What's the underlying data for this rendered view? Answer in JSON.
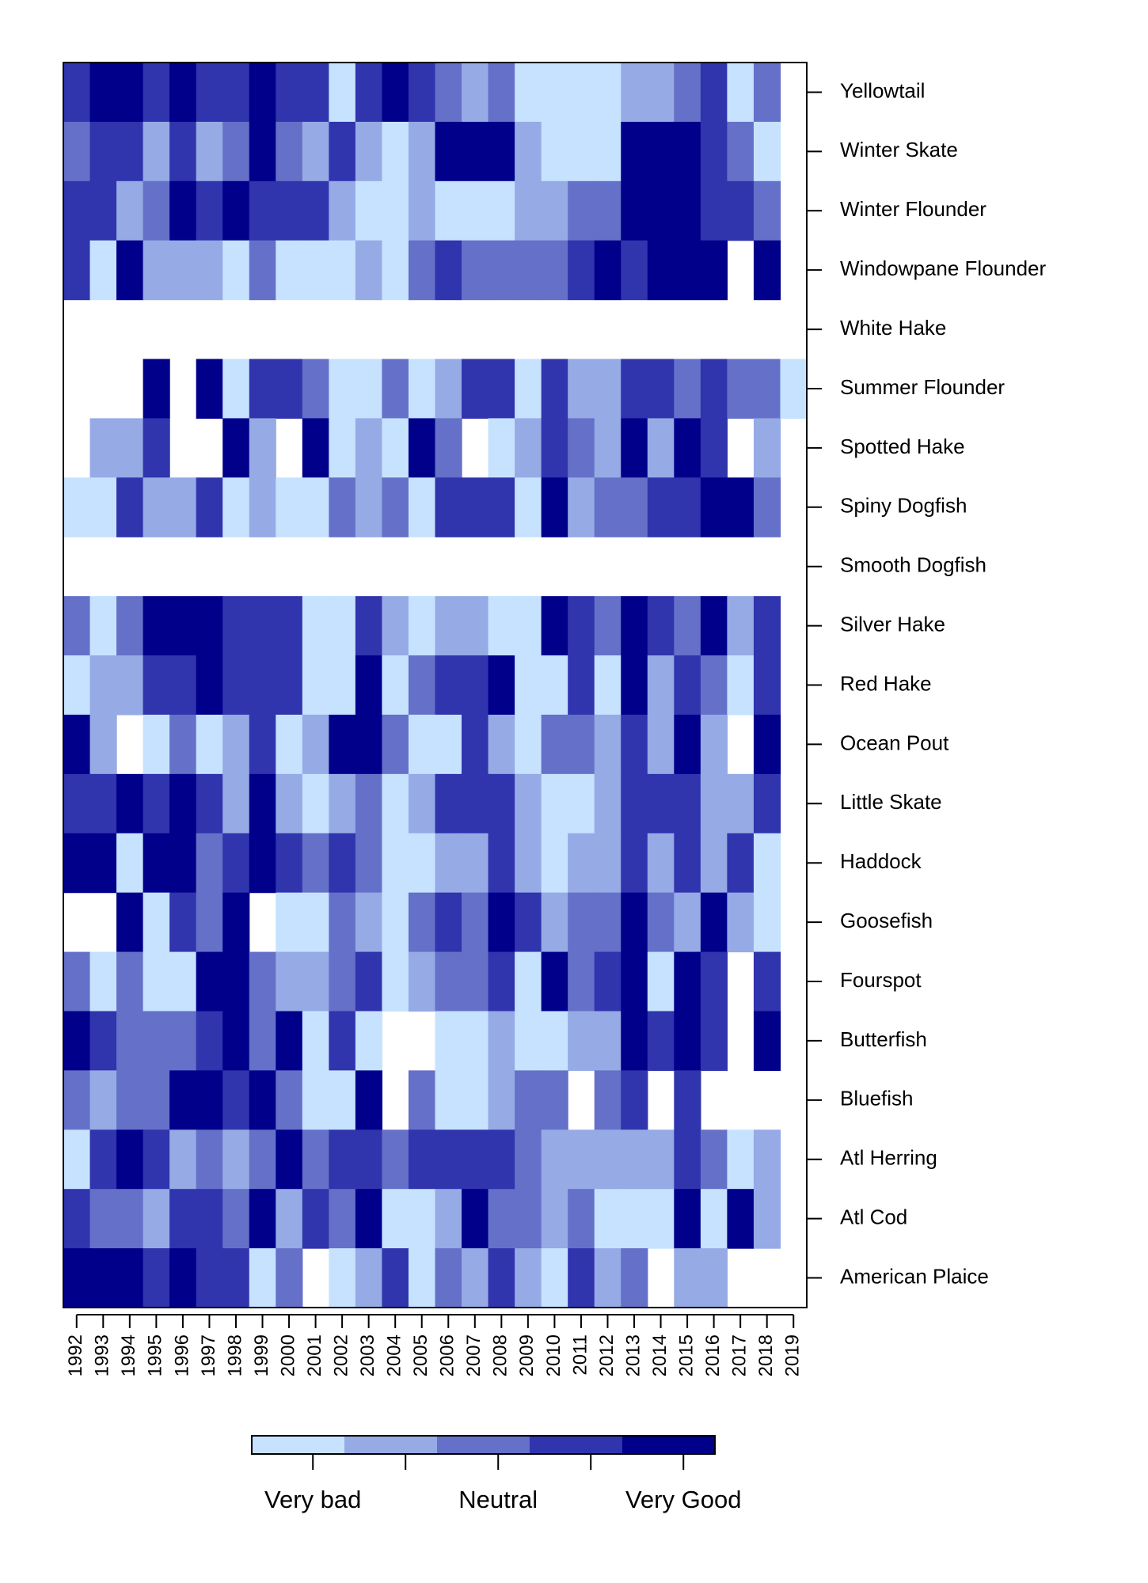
{
  "chart_data": {
    "type": "heatmap",
    "title": "",
    "x": [
      "1992",
      "1993",
      "1994",
      "1995",
      "1996",
      "1997",
      "1998",
      "1999",
      "2000",
      "2001",
      "2002",
      "2003",
      "2004",
      "2005",
      "2006",
      "2007",
      "2008",
      "2009",
      "2010",
      "2011",
      "2012",
      "2013",
      "2014",
      "2015",
      "2016",
      "2017",
      "2018",
      "2019"
    ],
    "y": [
      "Yellowtail",
      "Winter Skate",
      "Winter Flounder",
      "Windowpane Flounder",
      "White Hake",
      "Summer Flounder",
      "Spotted Hake",
      "Spiny Dogfish",
      "Smooth Dogfish",
      "Silver Hake",
      "Red Hake",
      "Ocean Pout",
      "Little Skate",
      "Haddock",
      "Goosefish",
      "Fourspot",
      "Butterfish",
      "Bluefish",
      "Atl Herring",
      "Atl Cod",
      "American Plaice"
    ],
    "scale": {
      "min": 1,
      "max": 5,
      "colors": [
        "#c6e2ff",
        "#96aae5",
        "#6570c8",
        "#3034ad",
        "#00008b"
      ],
      "legend_labels": [
        "Very bad",
        "Neutral",
        "Very Good"
      ],
      "missing": "blank"
    },
    "values": [
      [
        4,
        5,
        5,
        4,
        5,
        4,
        4,
        5,
        4,
        4,
        1,
        4,
        5,
        4,
        3,
        2,
        3,
        1,
        1,
        1,
        1,
        2,
        2,
        3,
        4,
        1,
        3,
        null
      ],
      [
        3,
        4,
        4,
        2,
        4,
        2,
        3,
        5,
        3,
        2,
        4,
        2,
        1,
        2,
        5,
        5,
        5,
        2,
        1,
        1,
        1,
        5,
        5,
        5,
        4,
        3,
        1,
        null
      ],
      [
        4,
        4,
        2,
        3,
        5,
        4,
        5,
        4,
        4,
        4,
        2,
        1,
        1,
        2,
        1,
        1,
        1,
        2,
        2,
        3,
        3,
        5,
        5,
        5,
        4,
        4,
        3,
        null
      ],
      [
        4,
        1,
        5,
        2,
        2,
        2,
        1,
        3,
        1,
        1,
        1,
        2,
        1,
        3,
        4,
        3,
        3,
        3,
        3,
        4,
        5,
        4,
        5,
        5,
        5,
        null,
        5,
        null
      ],
      [
        null,
        null,
        null,
        null,
        null,
        null,
        null,
        null,
        null,
        null,
        null,
        null,
        null,
        null,
        null,
        null,
        null,
        null,
        null,
        null,
        null,
        null,
        null,
        null,
        null,
        null,
        null,
        null
      ],
      [
        null,
        null,
        null,
        5,
        null,
        5,
        1,
        4,
        4,
        3,
        1,
        1,
        3,
        1,
        2,
        4,
        4,
        1,
        4,
        2,
        2,
        4,
        4,
        3,
        4,
        3,
        3,
        1
      ],
      [
        null,
        2,
        2,
        4,
        null,
        null,
        5,
        2,
        null,
        5,
        1,
        2,
        1,
        5,
        3,
        null,
        1,
        2,
        4,
        3,
        2,
        5,
        2,
        5,
        4,
        null,
        2,
        null
      ],
      [
        1,
        1,
        4,
        2,
        2,
        4,
        1,
        2,
        1,
        1,
        3,
        2,
        3,
        1,
        4,
        4,
        4,
        1,
        5,
        2,
        3,
        3,
        4,
        4,
        5,
        5,
        3,
        null
      ],
      [
        null,
        null,
        null,
        null,
        null,
        null,
        null,
        null,
        null,
        null,
        null,
        null,
        null,
        null,
        null,
        null,
        null,
        null,
        null,
        null,
        null,
        null,
        null,
        null,
        null,
        null,
        null,
        null
      ],
      [
        3,
        1,
        3,
        5,
        5,
        5,
        4,
        4,
        4,
        1,
        1,
        4,
        2,
        1,
        2,
        2,
        1,
        1,
        5,
        4,
        3,
        5,
        4,
        3,
        5,
        2,
        4,
        null
      ],
      [
        1,
        2,
        2,
        4,
        4,
        5,
        4,
        4,
        4,
        1,
        1,
        5,
        1,
        3,
        4,
        4,
        5,
        1,
        1,
        4,
        1,
        5,
        2,
        4,
        3,
        1,
        4,
        null
      ],
      [
        5,
        2,
        null,
        1,
        3,
        1,
        2,
        4,
        1,
        2,
        5,
        5,
        3,
        1,
        1,
        4,
        2,
        1,
        3,
        3,
        2,
        4,
        2,
        5,
        2,
        null,
        5,
        null
      ],
      [
        4,
        4,
        5,
        4,
        5,
        4,
        2,
        5,
        2,
        1,
        2,
        3,
        1,
        2,
        4,
        4,
        4,
        2,
        1,
        1,
        2,
        4,
        4,
        4,
        2,
        2,
        4,
        null
      ],
      [
        5,
        5,
        1,
        5,
        5,
        3,
        4,
        5,
        4,
        3,
        4,
        3,
        1,
        1,
        2,
        2,
        4,
        2,
        1,
        2,
        2,
        4,
        2,
        4,
        2,
        4,
        1,
        null
      ],
      [
        null,
        null,
        5,
        1,
        4,
        3,
        5,
        null,
        1,
        1,
        3,
        2,
        1,
        3,
        4,
        3,
        5,
        4,
        2,
        3,
        3,
        5,
        3,
        2,
        5,
        2,
        1,
        null
      ],
      [
        3,
        1,
        3,
        1,
        1,
        5,
        5,
        3,
        2,
        2,
        3,
        4,
        1,
        2,
        3,
        3,
        4,
        1,
        5,
        3,
        4,
        5,
        1,
        5,
        4,
        null,
        4,
        null
      ],
      [
        5,
        4,
        3,
        3,
        3,
        4,
        5,
        3,
        5,
        1,
        4,
        1,
        null,
        null,
        1,
        1,
        2,
        1,
        1,
        2,
        2,
        5,
        4,
        5,
        4,
        null,
        5,
        null
      ],
      [
        3,
        2,
        3,
        3,
        5,
        5,
        4,
        5,
        3,
        1,
        1,
        5,
        null,
        3,
        1,
        1,
        2,
        3,
        3,
        null,
        3,
        4,
        null,
        4,
        null,
        null,
        null,
        null
      ],
      [
        1,
        4,
        5,
        4,
        2,
        3,
        2,
        3,
        5,
        3,
        4,
        4,
        3,
        4,
        4,
        4,
        4,
        3,
        2,
        2,
        2,
        2,
        2,
        4,
        3,
        1,
        2,
        null
      ],
      [
        4,
        3,
        3,
        2,
        4,
        4,
        3,
        5,
        2,
        4,
        3,
        5,
        1,
        1,
        2,
        5,
        3,
        3,
        2,
        3,
        1,
        1,
        1,
        5,
        1,
        5,
        2,
        null
      ],
      [
        5,
        5,
        5,
        4,
        5,
        4,
        4,
        1,
        3,
        null,
        1,
        2,
        4,
        1,
        3,
        2,
        4,
        2,
        1,
        4,
        2,
        3,
        null,
        2,
        2,
        null,
        null,
        null
      ]
    ]
  }
}
